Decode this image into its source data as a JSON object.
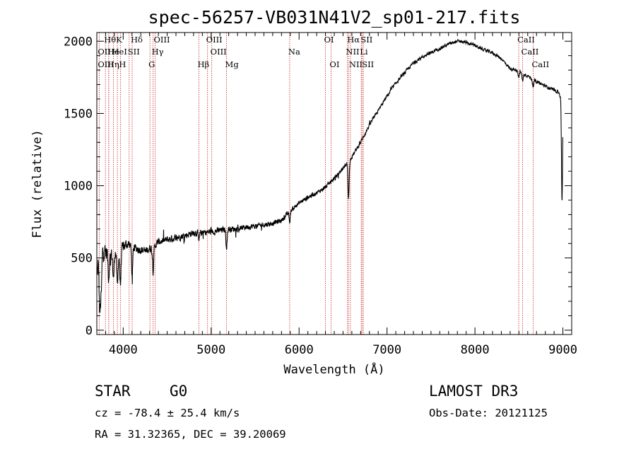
{
  "chart_data": {
    "type": "line",
    "title": "spec-56257-VB031N41V2_sp01-217.fits",
    "xlabel": "Wavelength (Å)",
    "ylabel": "Flux (relative)",
    "xlim": [
      3700,
      9100
    ],
    "ylim": [
      -30,
      2060
    ],
    "xticks": [
      4000,
      5000,
      6000,
      7000,
      8000,
      9000
    ],
    "yticks": [
      0,
      500,
      1000,
      1500,
      2000
    ],
    "xtick_labels": [
      "4000",
      "5000",
      "6000",
      "7000",
      "8000",
      "9000"
    ],
    "ytick_labels": [
      "0",
      "500",
      "1000",
      "1500",
      "2000"
    ],
    "spectrum": {
      "anchors": [
        [
          3700,
          380
        ],
        [
          3720,
          470
        ],
        [
          3750,
          560
        ],
        [
          3800,
          540
        ],
        [
          3850,
          510
        ],
        [
          3900,
          545
        ],
        [
          3950,
          530
        ],
        [
          4000,
          575
        ],
        [
          4050,
          600
        ],
        [
          4100,
          580
        ],
        [
          4150,
          565
        ],
        [
          4200,
          560
        ],
        [
          4250,
          545
        ],
        [
          4300,
          565
        ],
        [
          4350,
          580
        ],
        [
          4400,
          610
        ],
        [
          4500,
          625
        ],
        [
          4600,
          640
        ],
        [
          4700,
          655
        ],
        [
          4800,
          675
        ],
        [
          4900,
          675
        ],
        [
          5000,
          680
        ],
        [
          5100,
          690
        ],
        [
          5200,
          700
        ],
        [
          5300,
          700
        ],
        [
          5400,
          715
        ],
        [
          5500,
          720
        ],
        [
          5600,
          730
        ],
        [
          5700,
          740
        ],
        [
          5800,
          760
        ],
        [
          5900,
          825
        ],
        [
          6000,
          880
        ],
        [
          6100,
          920
        ],
        [
          6200,
          950
        ],
        [
          6300,
          990
        ],
        [
          6400,
          1050
        ],
        [
          6500,
          1120
        ],
        [
          6600,
          1200
        ],
        [
          6700,
          1300
        ],
        [
          6800,
          1420
        ],
        [
          6900,
          1520
        ],
        [
          7000,
          1620
        ],
        [
          7100,
          1710
        ],
        [
          7200,
          1780
        ],
        [
          7300,
          1850
        ],
        [
          7400,
          1890
        ],
        [
          7500,
          1920
        ],
        [
          7600,
          1950
        ],
        [
          7700,
          1980
        ],
        [
          7800,
          2000
        ],
        [
          7900,
          1990
        ],
        [
          8000,
          1970
        ],
        [
          8100,
          1940
        ],
        [
          8200,
          1920
        ],
        [
          8300,
          1880
        ],
        [
          8400,
          1810
        ],
        [
          8500,
          1790
        ],
        [
          8600,
          1760
        ],
        [
          8700,
          1720
        ],
        [
          8800,
          1690
        ],
        [
          8900,
          1660
        ],
        [
          8950,
          1650
        ],
        [
          8980,
          1600
        ],
        [
          9000,
          1580
        ]
      ],
      "noise_amplitude": [
        [
          3700,
          200
        ],
        [
          3900,
          120
        ],
        [
          4100,
          90
        ],
        [
          4400,
          70
        ],
        [
          5000,
          60
        ],
        [
          5800,
          45
        ],
        [
          6500,
          35
        ],
        [
          7500,
          30
        ],
        [
          8500,
          28
        ],
        [
          9000,
          30
        ]
      ],
      "features": [
        [
          3734,
          -380
        ],
        [
          3750,
          -300
        ],
        [
          3835,
          -150
        ],
        [
          3889,
          -190
        ],
        [
          3934,
          -240
        ],
        [
          3968,
          -230
        ],
        [
          4102,
          -200
        ],
        [
          4340,
          -170
        ],
        [
          4861,
          -60
        ],
        [
          5175,
          -120
        ],
        [
          5893,
          -70
        ],
        [
          6563,
          -250
        ],
        [
          8498,
          -40
        ],
        [
          8542,
          -50
        ],
        [
          8662,
          -50
        ],
        [
          8990,
          -700
        ]
      ]
    },
    "lines": [
      {
        "label": "Hθ",
        "x": 3798,
        "row": 0
      },
      {
        "label": "OII",
        "x": 3727,
        "row": 1
      },
      {
        "label": "OIII",
        "x": 3727,
        "row": 2
      },
      {
        "label": "He",
        "x": 3836,
        "row": 1
      },
      {
        "label": "Hη",
        "x": 3835,
        "row": 2
      },
      {
        "label": "K",
        "x": 3934,
        "row": 0
      },
      {
        "label": "HeI",
        "x": 3889,
        "row": 1
      },
      {
        "label": "H",
        "x": 3968,
        "row": 2
      },
      {
        "label": "SII",
        "x": 4068,
        "row": 1
      },
      {
        "label": "Hδ",
        "x": 4102,
        "row": 0
      },
      {
        "label": "OIII",
        "x": 4363,
        "row": 0
      },
      {
        "label": "Hγ",
        "x": 4340,
        "row": 1
      },
      {
        "label": "G",
        "x": 4304,
        "row": 2
      },
      {
        "label": "Hβ",
        "x": 4861,
        "row": 2
      },
      {
        "label": "OIII",
        "x": 4959,
        "row": 0
      },
      {
        "label": "OIII",
        "x": 5007,
        "row": 1
      },
      {
        "label": "Mg",
        "x": 5175,
        "row": 2
      },
      {
        "label": "Na",
        "x": 5893,
        "row": 1
      },
      {
        "label": "OI",
        "x": 6300,
        "row": 0
      },
      {
        "label": "OI",
        "x": 6363,
        "row": 2
      },
      {
        "label": "Hα",
        "x": 6563,
        "row": 0
      },
      {
        "label": "NII",
        "x": 6548,
        "row": 1
      },
      {
        "label": "NII",
        "x": 6584,
        "row": 2
      },
      {
        "label": "SII",
        "x": 6716,
        "row": 0
      },
      {
        "label": "Li",
        "x": 6707,
        "row": 1
      },
      {
        "label": "SII",
        "x": 6731,
        "row": 2
      },
      {
        "label": "CaII",
        "x": 8498,
        "row": 0
      },
      {
        "label": "CaII",
        "x": 8542,
        "row": 1
      },
      {
        "label": "CaII",
        "x": 8662,
        "row": 2
      }
    ],
    "line_color": "#cc2a2a",
    "spectrum_color": "#000000"
  },
  "info": {
    "object_class": "STAR",
    "subclass": "G0",
    "survey": "LAMOST DR3",
    "cz": "cz = -78.4 ± 25.4 km/s",
    "obs_date": "Obs-Date: 20121125",
    "coords": "RA =  31.32365, DEC =  39.20069"
  }
}
